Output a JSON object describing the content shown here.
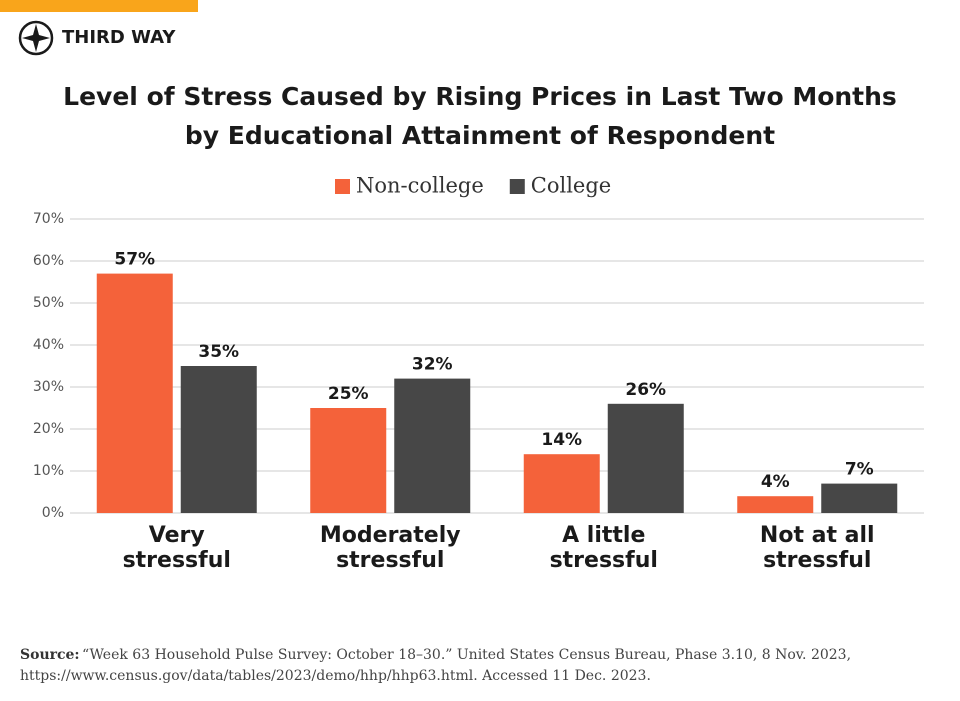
{
  "brand": "THIRD WAY",
  "chart_data": {
    "type": "bar",
    "title": [
      "Level of Stress Caused by Rising Prices in Last Two Months",
      "by Educational Attainment of Respondent"
    ],
    "categories": [
      "Very stressful",
      "Moderately stressful",
      "A little stressful",
      "Not at all stressful"
    ],
    "series": [
      {
        "name": "Non-college",
        "color": "#f4623a",
        "values": [
          57,
          25,
          14,
          4
        ],
        "value_labels": [
          "57%",
          "25%",
          "14%",
          "4%"
        ]
      },
      {
        "name": "College",
        "color": "#474747",
        "values": [
          35,
          32,
          26,
          7
        ],
        "value_labels": [
          "35%",
          "32%",
          "26%",
          "7%"
        ]
      }
    ],
    "ylim": [
      0,
      70
    ],
    "yticks": [
      {
        "value": 0,
        "label": "0%"
      },
      {
        "value": 10,
        "label": "10%"
      },
      {
        "value": 20,
        "label": "20%"
      },
      {
        "value": 30,
        "label": "30%"
      },
      {
        "value": 40,
        "label": "40%"
      },
      {
        "value": 50,
        "label": "50%"
      },
      {
        "value": 60,
        "label": "60%"
      },
      {
        "value": 70,
        "label": "70%"
      }
    ],
    "grid": true,
    "legend": "top",
    "source_label": "Source:",
    "source": [
      "“Week 63 Household Pulse Survey: October 18–30.” United States Census Bureau, Phase 3.10, 8 Nov. 2023,",
      "https://www.census.gov/data/tables/2023/demo/hhp/hhp63.html. Accessed 11 Dec. 2023."
    ]
  }
}
